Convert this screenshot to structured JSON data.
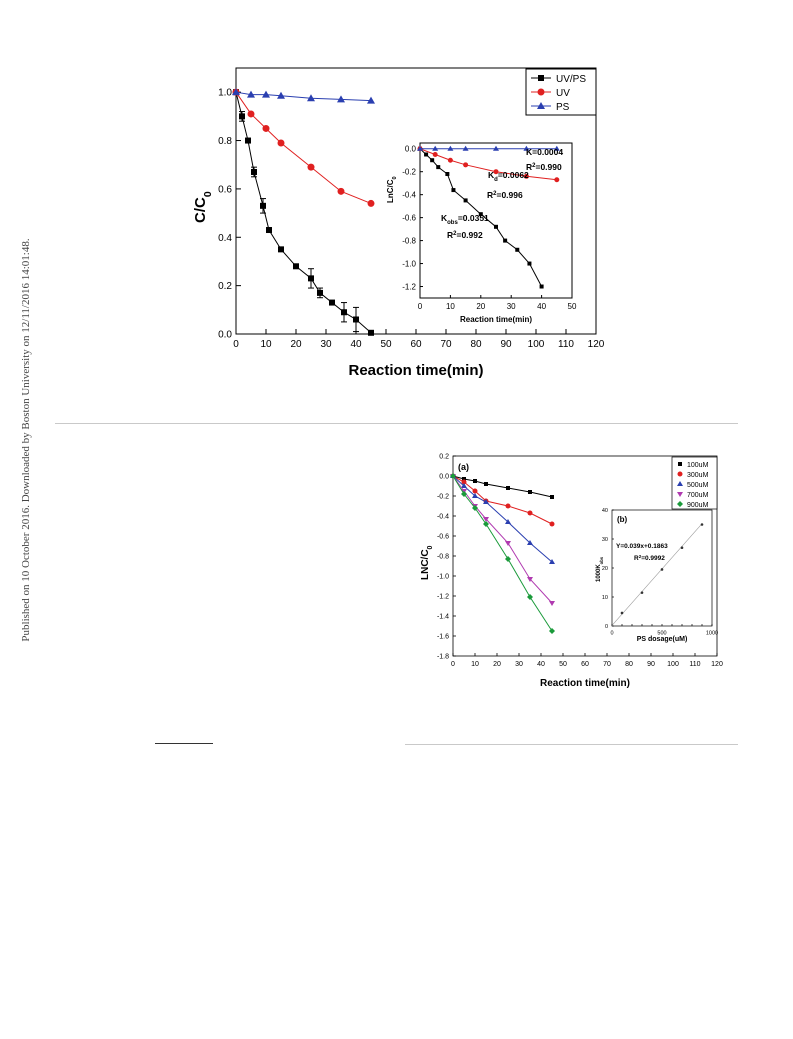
{
  "sidebar_note": "Published on 10 October 2016. Downloaded by Boston University on 12/11/2016 14:01:48.",
  "chart_data": [
    {
      "type": "scatter",
      "xlabel": "Reaction time(min)",
      "ylabel": "C/C0",
      "xlim": [
        0,
        120
      ],
      "ylim": [
        0,
        1.1
      ],
      "xticks": [
        0,
        10,
        20,
        30,
        40,
        50,
        60,
        70,
        80,
        90,
        100,
        110,
        120
      ],
      "yticks": [
        0.0,
        0.2,
        0.4,
        0.6,
        0.8,
        1.0
      ],
      "legend_position": "top-right",
      "series": [
        {
          "name": "UV/PS",
          "color": "#000000",
          "marker": "square",
          "x": [
            0,
            2,
            4,
            6,
            9,
            11,
            15,
            20,
            25,
            28,
            32,
            36,
            40,
            45
          ],
          "y": [
            1.0,
            0.9,
            0.8,
            0.67,
            0.53,
            0.43,
            0.35,
            0.28,
            0.23,
            0.17,
            0.13,
            0.09,
            0.06,
            0.005
          ],
          "err": [
            0,
            0.02,
            0,
            0.02,
            0.03,
            0,
            0,
            0,
            0.04,
            0.02,
            0,
            0.04,
            0.05,
            0
          ]
        },
        {
          "name": "UV",
          "color": "#e02020",
          "marker": "circle",
          "x": [
            0,
            5,
            10,
            15,
            25,
            35,
            45
          ],
          "y": [
            1.0,
            0.91,
            0.85,
            0.79,
            0.69,
            0.59,
            0.54
          ]
        },
        {
          "name": "PS",
          "color": "#2a3fb0",
          "marker": "triangle",
          "x": [
            0,
            5,
            10,
            15,
            25,
            35,
            45
          ],
          "y": [
            1.0,
            0.99,
            0.99,
            0.985,
            0.975,
            0.97,
            0.965
          ]
        }
      ],
      "inset": {
        "xlabel": "Reaction time(min)",
        "ylabel": "LnC/C0",
        "xlim": [
          0,
          50
        ],
        "ylim": [
          -1.3,
          0.05
        ],
        "xticks": [
          0,
          10,
          20,
          30,
          40,
          50
        ],
        "yticks": [
          0.0,
          -0.2,
          -0.4,
          -0.6,
          -0.8,
          -1.0,
          -1.2
        ],
        "series": [
          {
            "name": "UV/PS",
            "color": "#000000",
            "marker": "square",
            "x": [
              0,
              2,
              4,
              6,
              9,
              11,
              15,
              20,
              25,
              28,
              32,
              36,
              40
            ],
            "y": [
              0,
              -0.05,
              -0.1,
              -0.16,
              -0.22,
              -0.36,
              -0.45,
              -0.57,
              -0.68,
              -0.8,
              -0.88,
              -1.0,
              -1.2
            ]
          },
          {
            "name": "UV",
            "color": "#e02020",
            "marker": "circle",
            "x": [
              0,
              5,
              10,
              15,
              25,
              35,
              45
            ],
            "y": [
              0,
              -0.05,
              -0.1,
              -0.14,
              -0.2,
              -0.24,
              -0.27
            ]
          },
          {
            "name": "PS",
            "color": "#2a3fb0",
            "marker": "triangle",
            "x": [
              0,
              5,
              10,
              15,
              25,
              35,
              45
            ],
            "y": [
              0,
              0,
              0,
              0,
              0,
              0,
              0
            ]
          }
        ],
        "annotations": [
          {
            "pre": "K=0.0004",
            "sub": "",
            "post": ""
          },
          {
            "pre": "R",
            "sup": "2",
            "post": "=0.990"
          },
          {
            "pre": "K",
            "sub": "d",
            "post": "=0.0062"
          },
          {
            "pre": "R",
            "sup": "2",
            "post": "=0.996"
          },
          {
            "pre": "K",
            "sub": "obs",
            "post": "=0.0351"
          },
          {
            "pre": "R",
            "sup": "2",
            "post": "=0.992"
          }
        ]
      }
    },
    {
      "type": "scatter",
      "panel_label": "(a)",
      "xlabel": "Reaction time(min)",
      "ylabel": "LNC/C0",
      "xlim": [
        0,
        120
      ],
      "ylim": [
        -1.8,
        0.2
      ],
      "xticks": [
        0,
        10,
        20,
        30,
        40,
        50,
        60,
        70,
        80,
        90,
        100,
        110,
        120
      ],
      "yticks": [
        0.2,
        0.0,
        -0.2,
        -0.4,
        -0.6,
        -0.8,
        -1.0,
        -1.2,
        -1.4,
        -1.6,
        -1.8
      ],
      "legend_position": "top-right",
      "series": [
        {
          "name": "100uM",
          "color": "#000000",
          "marker": "square",
          "x": [
            0,
            5,
            10,
            15,
            25,
            35,
            45
          ],
          "y": [
            0,
            -0.03,
            -0.05,
            -0.08,
            -0.12,
            -0.16,
            -0.21
          ]
        },
        {
          "name": "300uM",
          "color": "#e02020",
          "marker": "circle",
          "x": [
            0,
            5,
            10,
            15,
            25,
            35,
            45
          ],
          "y": [
            0,
            -0.06,
            -0.15,
            -0.25,
            -0.3,
            -0.37,
            -0.48
          ]
        },
        {
          "name": "500uM",
          "color": "#2a3fb0",
          "marker": "triangle",
          "x": [
            0,
            5,
            10,
            15,
            25,
            35,
            45
          ],
          "y": [
            0,
            -0.1,
            -0.2,
            -0.26,
            -0.46,
            -0.67,
            -0.86
          ]
        },
        {
          "name": "700uM",
          "color": "#b03ab0",
          "marker": "triangle-down",
          "x": [
            0,
            5,
            10,
            15,
            25,
            35,
            45
          ],
          "y": [
            0,
            -0.15,
            -0.3,
            -0.43,
            -0.67,
            -1.03,
            -1.27
          ]
        },
        {
          "name": "900uM",
          "color": "#1a9a3a",
          "marker": "diamond",
          "x": [
            0,
            5,
            10,
            15,
            25,
            35,
            45
          ],
          "y": [
            0,
            -0.18,
            -0.32,
            -0.48,
            -0.83,
            -1.21,
            -1.55
          ]
        }
      ],
      "inset": {
        "panel_label": "(b)",
        "xlabel": "PS dosage(uM)",
        "ylabel": "1000Kobs",
        "xlim": [
          0,
          1000
        ],
        "ylim": [
          0,
          40
        ],
        "xticks": [
          0,
          100,
          200,
          300,
          400,
          500,
          600,
          700,
          800,
          900,
          1000
        ],
        "xtick_labels": [
          "0",
          "",
          "",
          "",
          "",
          "500",
          "",
          "",
          "",
          "",
          "1000"
        ],
        "yticks": [
          0,
          10,
          20,
          30,
          40
        ],
        "series": [
          {
            "name": "",
            "color": "#333333",
            "marker": "dot",
            "x": [
              100,
              300,
              500,
              700,
              900
            ],
            "y": [
              4.5,
              11.5,
              19.5,
              27,
              35
            ]
          }
        ],
        "fit": {
          "slope": 0.039,
          "intercept": 0.1863
        },
        "annotations": [
          "Y=0.039x+0.1863",
          "R2=0.9992"
        ]
      }
    }
  ]
}
